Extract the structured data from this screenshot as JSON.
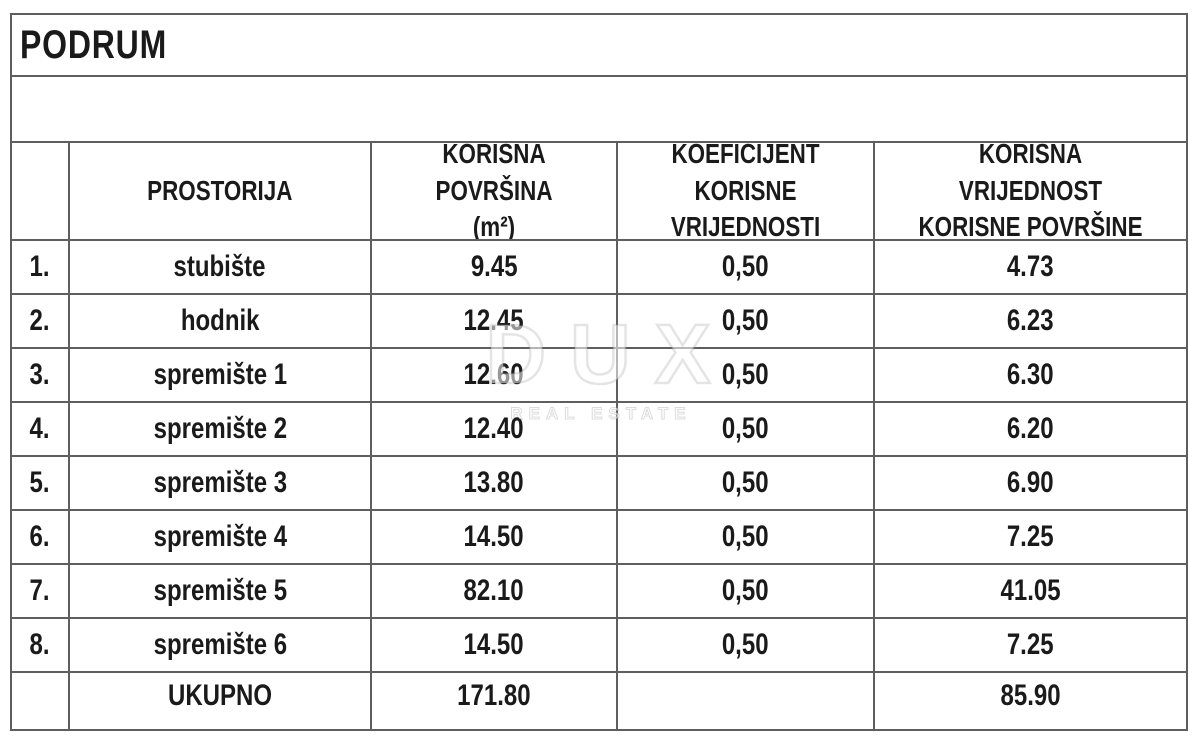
{
  "title": "PODRUM",
  "watermark": {
    "brand": "DUX",
    "subtitle": "REAL ESTATE"
  },
  "colors": {
    "grid_line": "#5e5e5e",
    "text": "#1a1a1a",
    "watermark": "#e4e4e4",
    "background": "#ffffff"
  },
  "table": {
    "headers": {
      "number": "",
      "room": "PROSTORIJA",
      "area": "KORISNA POVRŠINA\n(m²)",
      "coefficient": "KOEFICIJENT KORISNE\nVRIJEDNOSTI",
      "value": "KORISNA VRIJEDNOST\nKORISNE POVRŠINE"
    },
    "rows": [
      {
        "num": "1.",
        "name": "stubište",
        "area": "9.45",
        "coef": "0,50",
        "value": "4.73"
      },
      {
        "num": "2.",
        "name": "hodnik",
        "area": "12.45",
        "coef": "0,50",
        "value": "6.23"
      },
      {
        "num": "3.",
        "name": "spremište 1",
        "area": "12.60",
        "coef": "0,50",
        "value": "6.30"
      },
      {
        "num": "4.",
        "name": "spremište 2",
        "area": "12.40",
        "coef": "0,50",
        "value": "6.20"
      },
      {
        "num": "5.",
        "name": "spremište 3",
        "area": "13.80",
        "coef": "0,50",
        "value": "6.90"
      },
      {
        "num": "6.",
        "name": "spremište 4",
        "area": "14.50",
        "coef": "0,50",
        "value": "7.25"
      },
      {
        "num": "7.",
        "name": "spremište 5",
        "area": "82.10",
        "coef": "0,50",
        "value": "41.05"
      },
      {
        "num": "8.",
        "name": "spremište 6",
        "area": "14.50",
        "coef": "0,50",
        "value": "7.25"
      }
    ],
    "total": {
      "num": "",
      "label": "UKUPNO",
      "area": "171.80",
      "coef": "",
      "value": "85.90"
    }
  }
}
